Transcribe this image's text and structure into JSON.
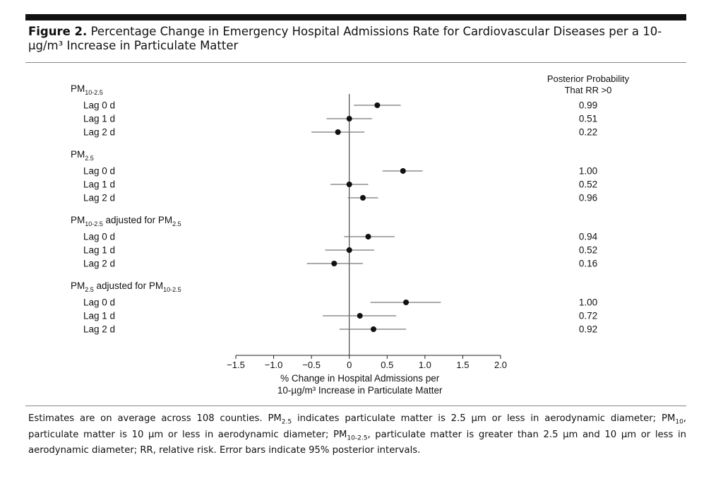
{
  "figure": {
    "label": "Figure 2.",
    "title": "Percentage Change in Emergency Hospital Admissions Rate for Cardiovascular Diseases per a 10-µg/m³ Increase in Particulate Matter"
  },
  "chart_data": {
    "type": "forest",
    "xlabel_line1": "% Change in Hospital Admissions per",
    "xlabel_line2": "10-µg/m³ Increase in Particulate Matter",
    "xlim": [
      -1.5,
      2.0
    ],
    "xticks": [
      -1.5,
      -1.0,
      -0.5,
      0,
      0.5,
      1.0,
      1.5,
      2.0
    ],
    "xtick_labels": [
      "−1.5",
      "−1.0",
      "−0.5",
      "0",
      "0.5",
      "1.0",
      "1.5",
      "2.0"
    ],
    "prob_header_line1": "Posterior Probability",
    "prob_header_line2": "That RR >0",
    "groups": [
      {
        "label_main": "PM",
        "label_sub": "10-2.5",
        "label_suffix": "",
        "label_suffix_sub": "",
        "rows": [
          {
            "label": "Lag 0 d",
            "estimate": 0.37,
            "lower": 0.06,
            "upper": 0.68,
            "prob": "0.99"
          },
          {
            "label": "Lag 1 d",
            "estimate": 0.0,
            "lower": -0.3,
            "upper": 0.3,
            "prob": "0.51"
          },
          {
            "label": "Lag 2 d",
            "estimate": -0.15,
            "lower": -0.5,
            "upper": 0.2,
            "prob": "0.22"
          }
        ]
      },
      {
        "label_main": "PM",
        "label_sub": "2.5",
        "label_suffix": "",
        "label_suffix_sub": "",
        "rows": [
          {
            "label": "Lag 0 d",
            "estimate": 0.71,
            "lower": 0.44,
            "upper": 0.97,
            "prob": "1.00"
          },
          {
            "label": "Lag 1 d",
            "estimate": 0.0,
            "lower": -0.25,
            "upper": 0.25,
            "prob": "0.52"
          },
          {
            "label": "Lag 2 d",
            "estimate": 0.18,
            "lower": -0.02,
            "upper": 0.38,
            "prob": "0.96"
          }
        ]
      },
      {
        "label_main": "PM",
        "label_sub": "10-2.5",
        "label_suffix": " adjusted for PM",
        "label_suffix_sub": "2.5",
        "rows": [
          {
            "label": "Lag 0 d",
            "estimate": 0.25,
            "lower": -0.07,
            "upper": 0.6,
            "prob": "0.94"
          },
          {
            "label": "Lag 1 d",
            "estimate": 0.0,
            "lower": -0.32,
            "upper": 0.33,
            "prob": "0.52"
          },
          {
            "label": "Lag 2 d",
            "estimate": -0.2,
            "lower": -0.56,
            "upper": 0.18,
            "prob": "0.16"
          }
        ]
      },
      {
        "label_main": "PM",
        "label_sub": "2.5",
        "label_suffix": " adjusted for PM",
        "label_suffix_sub": "10-2.5",
        "rows": [
          {
            "label": "Lag 0 d",
            "estimate": 0.75,
            "lower": 0.28,
            "upper": 1.21,
            "prob": "1.00"
          },
          {
            "label": "Lag 1 d",
            "estimate": 0.14,
            "lower": -0.35,
            "upper": 0.62,
            "prob": "0.72"
          },
          {
            "label": "Lag 2 d",
            "estimate": 0.32,
            "lower": -0.13,
            "upper": 0.75,
            "prob": "0.92"
          }
        ]
      }
    ]
  },
  "footnote": {
    "intro": "Estimates are on average across 108 counties. ",
    "pm25_main": "PM",
    "pm25_sub": "2.5",
    "pm25_text": " indicates particulate matter is 2.5 µm or less in aerodynamic diameter; ",
    "pm10_main": "PM",
    "pm10_sub": "10",
    "pm10_text": ", particulate matter is 10 µm or less in aerodynamic diameter; ",
    "pm1025_main": "PM",
    "pm1025_sub": "10-2.5",
    "pm1025_text": ", particulate matter is greater than 2.5 µm and 10 µm or less in aerodynamic diameter; RR, relative risk. Error bars indicate 95% posterior intervals."
  }
}
